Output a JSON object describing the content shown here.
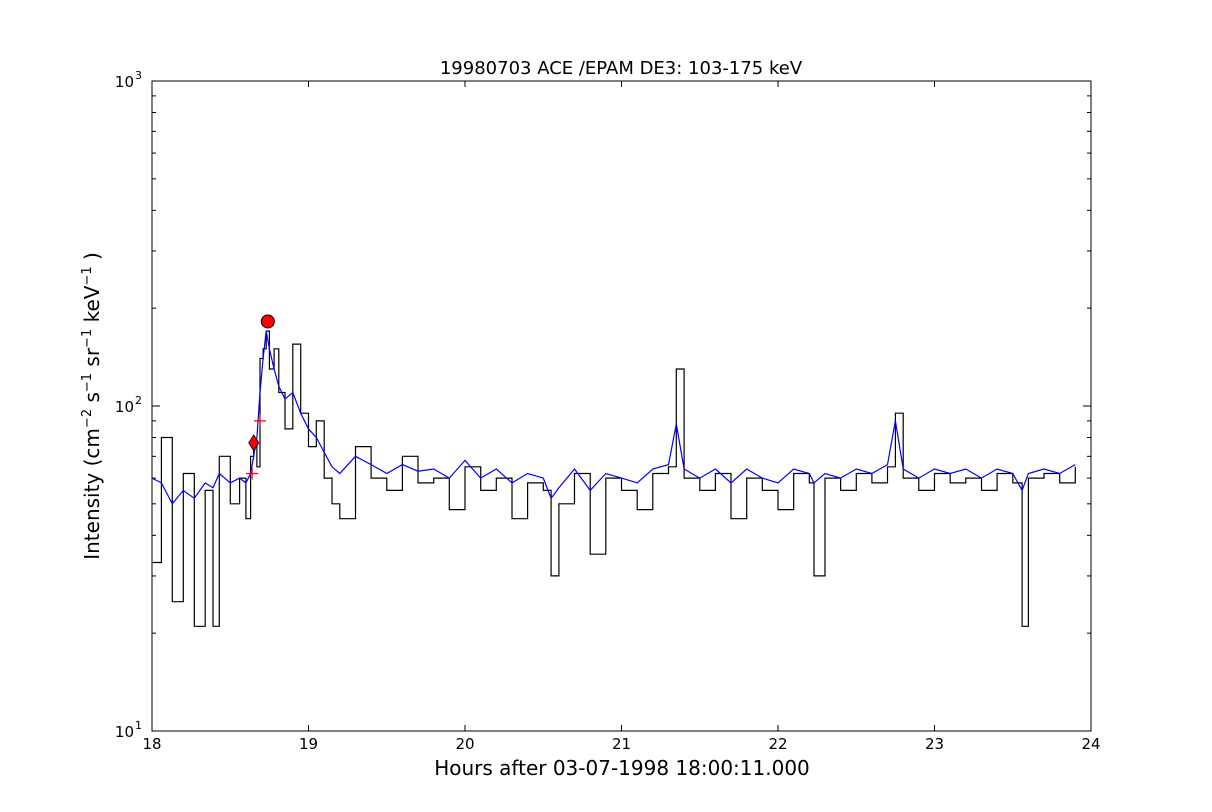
{
  "chart_data": {
    "type": "line",
    "title": "19980703 ACE /EPAM DE3: 103-175 keV",
    "xlabel": "Hours after 03-07-1998 18:00:11.000",
    "ylabel": {
      "prefix": "Intensity (cm",
      "e1": "−2",
      "s": " s",
      "e2": "−1",
      "sr": " sr",
      "e3": "−1",
      "kev": " keV",
      "e4": "−1",
      "suffix": " )"
    },
    "xlim": [
      18,
      24
    ],
    "ylim": [
      10,
      1000
    ],
    "yscale": "log",
    "grid": false,
    "xticks": [
      {
        "value": 18,
        "label": "18"
      },
      {
        "value": 19,
        "label": "19"
      },
      {
        "value": 20,
        "label": "20"
      },
      {
        "value": 21,
        "label": "21"
      },
      {
        "value": 22,
        "label": "22"
      },
      {
        "value": 23,
        "label": "23"
      },
      {
        "value": 24,
        "label": "24"
      }
    ],
    "yticks": [
      {
        "value": 10,
        "base": "10",
        "exp": "1"
      },
      {
        "value": 100,
        "base": "10",
        "exp": "2"
      },
      {
        "value": 1000,
        "base": "10",
        "exp": "3"
      }
    ],
    "series": [
      {
        "key": "raw",
        "color": "#000000",
        "style": "steps",
        "x": [
          18.0,
          18.06,
          18.13,
          18.2,
          18.27,
          18.34,
          18.39,
          18.43,
          18.5,
          18.56,
          18.6,
          18.63,
          18.65,
          18.67,
          18.69,
          18.71,
          18.73,
          18.75,
          18.78,
          18.81,
          18.85,
          18.9,
          18.95,
          19.0,
          19.05,
          19.1,
          19.15,
          19.2,
          19.3,
          19.4,
          19.5,
          19.6,
          19.7,
          19.8,
          19.9,
          20.0,
          20.1,
          20.2,
          20.3,
          20.4,
          20.5,
          20.55,
          20.6,
          20.7,
          20.8,
          20.9,
          21.0,
          21.1,
          21.2,
          21.3,
          21.35,
          21.4,
          21.5,
          21.6,
          21.7,
          21.8,
          21.9,
          22.0,
          22.1,
          22.2,
          22.23,
          22.3,
          22.4,
          22.5,
          22.6,
          22.7,
          22.75,
          22.8,
          22.9,
          23.0,
          23.1,
          23.2,
          23.3,
          23.4,
          23.5,
          23.56,
          23.6,
          23.7,
          23.8,
          23.9
        ],
        "y": [
          33,
          80,
          25,
          62,
          21,
          55,
          21,
          70,
          50,
          60,
          45,
          70,
          75,
          65,
          140,
          150,
          170,
          130,
          150,
          110,
          85,
          155,
          95,
          75,
          90,
          60,
          50,
          45,
          75,
          60,
          55,
          70,
          58,
          60,
          48,
          65,
          55,
          60,
          45,
          58,
          55,
          30,
          50,
          62,
          35,
          60,
          55,
          48,
          62,
          65,
          130,
          60,
          55,
          62,
          45,
          60,
          55,
          48,
          62,
          58,
          30,
          60,
          55,
          62,
          58,
          65,
          95,
          60,
          55,
          62,
          58,
          60,
          55,
          62,
          58,
          21,
          60,
          62,
          58,
          65
        ]
      },
      {
        "key": "smoothed",
        "color": "#0000ff",
        "style": "line",
        "x": [
          18.0,
          18.06,
          18.13,
          18.2,
          18.27,
          18.34,
          18.39,
          18.43,
          18.5,
          18.56,
          18.6,
          18.63,
          18.65,
          18.67,
          18.69,
          18.71,
          18.73,
          18.75,
          18.78,
          18.81,
          18.85,
          18.9,
          18.95,
          19.0,
          19.05,
          19.1,
          19.15,
          19.2,
          19.3,
          19.4,
          19.5,
          19.6,
          19.7,
          19.8,
          19.9,
          20.0,
          20.1,
          20.2,
          20.3,
          20.4,
          20.5,
          20.55,
          20.6,
          20.7,
          20.8,
          20.9,
          21.0,
          21.1,
          21.2,
          21.3,
          21.35,
          21.4,
          21.5,
          21.6,
          21.7,
          21.8,
          21.9,
          22.0,
          22.1,
          22.2,
          22.23,
          22.3,
          22.4,
          22.5,
          22.6,
          22.7,
          22.75,
          22.8,
          22.9,
          23.0,
          23.1,
          23.2,
          23.3,
          23.4,
          23.5,
          23.56,
          23.6,
          23.7,
          23.8,
          23.9
        ],
        "y": [
          60,
          58,
          50,
          55,
          52,
          58,
          56,
          62,
          58,
          60,
          58,
          62,
          70,
          80,
          110,
          140,
          170,
          150,
          130,
          115,
          105,
          110,
          95,
          85,
          80,
          72,
          65,
          62,
          70,
          66,
          62,
          66,
          63,
          64,
          60,
          68,
          60,
          64,
          58,
          62,
          60,
          52,
          56,
          64,
          55,
          62,
          60,
          58,
          64,
          66,
          88,
          64,
          60,
          64,
          58,
          64,
          60,
          58,
          64,
          62,
          58,
          62,
          60,
          64,
          62,
          66,
          90,
          64,
          60,
          64,
          62,
          64,
          60,
          64,
          62,
          55,
          62,
          64,
          62,
          66
        ]
      }
    ],
    "markers": [
      {
        "shape": "circle",
        "color": "#ff0000",
        "x": 18.74,
        "y": 182
      },
      {
        "shape": "diamond",
        "color": "#ff0000",
        "x": 18.65,
        "y": 77
      },
      {
        "shape": "plus",
        "color": "#ff0000",
        "x": 18.69,
        "y": 90
      },
      {
        "shape": "plus",
        "color": "#ff0000",
        "x": 18.64,
        "y": 62
      }
    ]
  }
}
